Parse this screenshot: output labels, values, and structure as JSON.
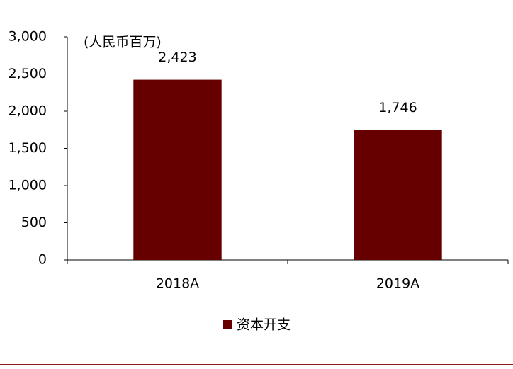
{
  "chart_data": {
    "type": "bar",
    "annotation": "(人民币百万)",
    "categories": [
      "2018A",
      "2019A"
    ],
    "series": [
      {
        "name": "资本开支",
        "color": "#660000",
        "values": [
          2423,
          1746
        ],
        "value_labels": [
          "2,423",
          "1,746"
        ]
      }
    ],
    "ylim": [
      0,
      3000
    ],
    "yticks": [
      0,
      500,
      {
        "value": 1000,
        "label": "1,000"
      },
      {
        "value": 1500,
        "label": "1,500"
      },
      {
        "value": 2000,
        "label": "2,000"
      },
      {
        "value": 2500,
        "label": "2,500"
      },
      {
        "value": 3000,
        "label": "3,000"
      }
    ],
    "grid": false,
    "legend": "bottom"
  }
}
